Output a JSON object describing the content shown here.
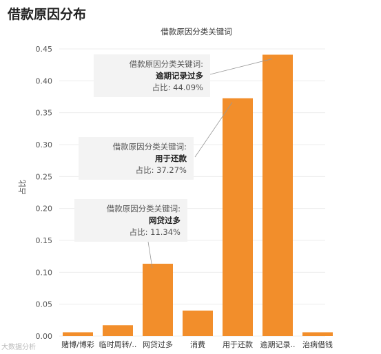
{
  "page_title": "借款原因分布",
  "chart_data": {
    "type": "bar",
    "title": "借款原因分类关键词",
    "ylabel": "占比",
    "xlabel": "",
    "ylim": [
      0,
      0.45
    ],
    "yticks": [
      "0.00",
      "0.05",
      "0.10",
      "0.15",
      "0.20",
      "0.25",
      "0.30",
      "0.35",
      "0.40",
      "0.45"
    ],
    "categories": [
      "赌博/博彩",
      "临时周转/..",
      "网贷过多",
      "消费",
      "用于还款",
      "逾期记录..",
      "治病借钱"
    ],
    "values": [
      0.006,
      0.017,
      0.1134,
      0.04,
      0.3727,
      0.4409,
      0.006
    ],
    "color": "#f28e2b"
  },
  "callouts": [
    {
      "label": "借款原因分类关键词:",
      "category": "逾期记录过多",
      "ratio": "占比: 44.09%"
    },
    {
      "label": "借款原因分类关键词:",
      "category": "用于还款",
      "ratio": "占比: 37.27%"
    },
    {
      "label": "借款原因分类关键词:",
      "category": "网贷过多",
      "ratio": "占比: 11.34%"
    }
  ],
  "watermark": "大数据分析"
}
